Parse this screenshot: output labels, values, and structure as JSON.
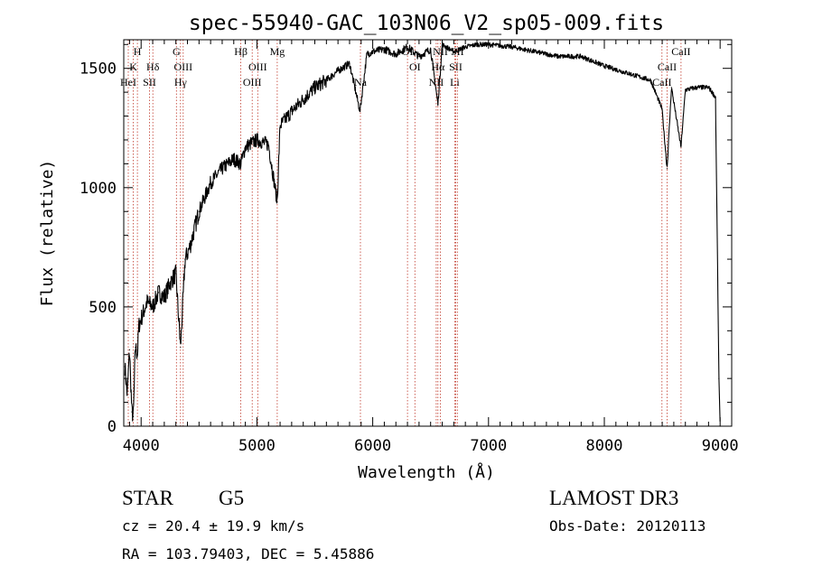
{
  "chart_data": {
    "type": "line",
    "title": "spec-55940-GAC_103N06_V2_sp05-009.fits",
    "xlabel": "Wavelength (Å)",
    "ylabel": "Flux (relative)",
    "xlim": [
      3850,
      9100
    ],
    "ylim": [
      0,
      1620
    ],
    "xticks": [
      4000,
      5000,
      6000,
      7000,
      8000,
      9000
    ],
    "xtick_labels": [
      "4000",
      "5000",
      "6000",
      "7000",
      "8000",
      "9000"
    ],
    "yticks": [
      0,
      500,
      1000,
      1500
    ],
    "ytick_labels": [
      "0",
      "500",
      "1000",
      "1500"
    ],
    "grid": false,
    "series": [
      {
        "name": "spectrum",
        "x": [
          3860,
          3880,
          3900,
          3920,
          3933,
          3950,
          3968,
          3980,
          4000,
          4050,
          4101,
          4150,
          4200,
          4250,
          4300,
          4340,
          4380,
          4420,
          4500,
          4600,
          4700,
          4800,
          4861,
          4900,
          5000,
          5100,
          5175,
          5200,
          5300,
          5400,
          5500,
          5600,
          5700,
          5800,
          5890,
          5950,
          6000,
          6100,
          6200,
          6300,
          6400,
          6500,
          6563,
          6600,
          6700,
          6800,
          6900,
          7000,
          7200,
          7400,
          7600,
          7800,
          8000,
          8200,
          8400,
          8498,
          8542,
          8580,
          8662,
          8700,
          8800,
          8900,
          8960,
          8990,
          9000
        ],
        "y": [
          250,
          130,
          320,
          60,
          40,
          330,
          300,
          420,
          450,
          520,
          500,
          560,
          540,
          600,
          640,
          330,
          700,
          750,
          900,
          1020,
          1080,
          1120,
          1100,
          1170,
          1200,
          1180,
          940,
          1260,
          1320,
          1370,
          1420,
          1450,
          1490,
          1520,
          1320,
          1560,
          1570,
          1580,
          1560,
          1590,
          1550,
          1580,
          1350,
          1600,
          1570,
          1590,
          1600,
          1600,
          1590,
          1570,
          1550,
          1550,
          1510,
          1480,
          1450,
          1330,
          1080,
          1420,
          1170,
          1410,
          1420,
          1420,
          1380,
          200,
          0
        ]
      }
    ],
    "lines": [
      {
        "wl": 3889,
        "tier": 2,
        "label": "HeI"
      },
      {
        "wl": 3933,
        "tier": 1,
        "label": "K"
      },
      {
        "wl": 3968,
        "tier": 0,
        "label": "H"
      },
      {
        "wl": 4072,
        "tier": 2,
        "label": "SII"
      },
      {
        "wl": 4101,
        "tier": 1,
        "label": "Hδ"
      },
      {
        "wl": 4305,
        "tier": 0,
        "label": "G"
      },
      {
        "wl": 4340,
        "tier": 2,
        "label": "Hγ"
      },
      {
        "wl": 4363,
        "tier": 1,
        "label": "OIII"
      },
      {
        "wl": 4861,
        "tier": 0,
        "label": "Hβ"
      },
      {
        "wl": 4959,
        "tier": 2,
        "label": "OIII"
      },
      {
        "wl": 5007,
        "tier": 1,
        "label": "OIII"
      },
      {
        "wl": 5175,
        "tier": 0,
        "label": "Mg"
      },
      {
        "wl": 5894,
        "tier": 2,
        "label": "Na"
      },
      {
        "wl": 6300,
        "tier": 0,
        "label": "OI"
      },
      {
        "wl": 6364,
        "tier": 1,
        "label": "OI"
      },
      {
        "wl": 6548,
        "tier": 2,
        "label": "NII"
      },
      {
        "wl": 6563,
        "tier": 1,
        "label": "Hα"
      },
      {
        "wl": 6584,
        "tier": 0,
        "label": "NII"
      },
      {
        "wl": 6708,
        "tier": 2,
        "label": "Li"
      },
      {
        "wl": 6717,
        "tier": 1,
        "label": "SII"
      },
      {
        "wl": 6731,
        "tier": 0,
        "label": "SII"
      },
      {
        "wl": 8498,
        "tier": 2,
        "label": "CaII"
      },
      {
        "wl": 8542,
        "tier": 1,
        "label": "CaII"
      },
      {
        "wl": 8662,
        "tier": 0,
        "label": "CaII"
      }
    ]
  },
  "info": {
    "object_class": "STAR",
    "subclass": "G5",
    "cz": "cz = 20.4 ± 19.9 km/s",
    "radec": "RA = 103.79403, DEC =   5.45886",
    "survey": "LAMOST DR3",
    "obs_date": "Obs-Date: 20120113"
  },
  "colors": {
    "axes": "#000000",
    "spectrum": "#000000",
    "line_markers": "#c0392b",
    "background": "#ffffff"
  }
}
